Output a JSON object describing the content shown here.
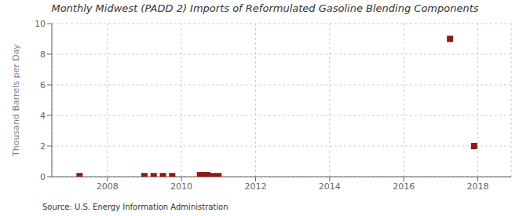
{
  "chart_data": {
    "type": "scatter",
    "title": "Monthly Midwest (PADD 2) Imports of Reformulated Gasoline Blending Components",
    "ylabel": "Thousand Barrels per Day",
    "annotations": [
      "Source: U.S. Energy Information Administration"
    ],
    "x": [
      2007.25,
      2009.0,
      2009.25,
      2009.5,
      2009.75,
      2010.5,
      2010.6,
      2010.7,
      2010.85,
      2011.0,
      2017.25,
      2017.9
    ],
    "values": [
      0.04,
      0.04,
      0.04,
      0.04,
      0.04,
      0.1,
      0.1,
      0.1,
      0.04,
      0.04,
      9.0,
      2.0
    ],
    "color": "#8b1a1a",
    "marker": "square",
    "xlim": [
      2006.5,
      2018.9
    ],
    "xticks": [
      2008,
      2010,
      2012,
      2014,
      2016,
      2018
    ],
    "ylim": [
      0,
      10
    ],
    "yticks": [
      0,
      2,
      4,
      6,
      8,
      10
    ],
    "grid": true
  }
}
